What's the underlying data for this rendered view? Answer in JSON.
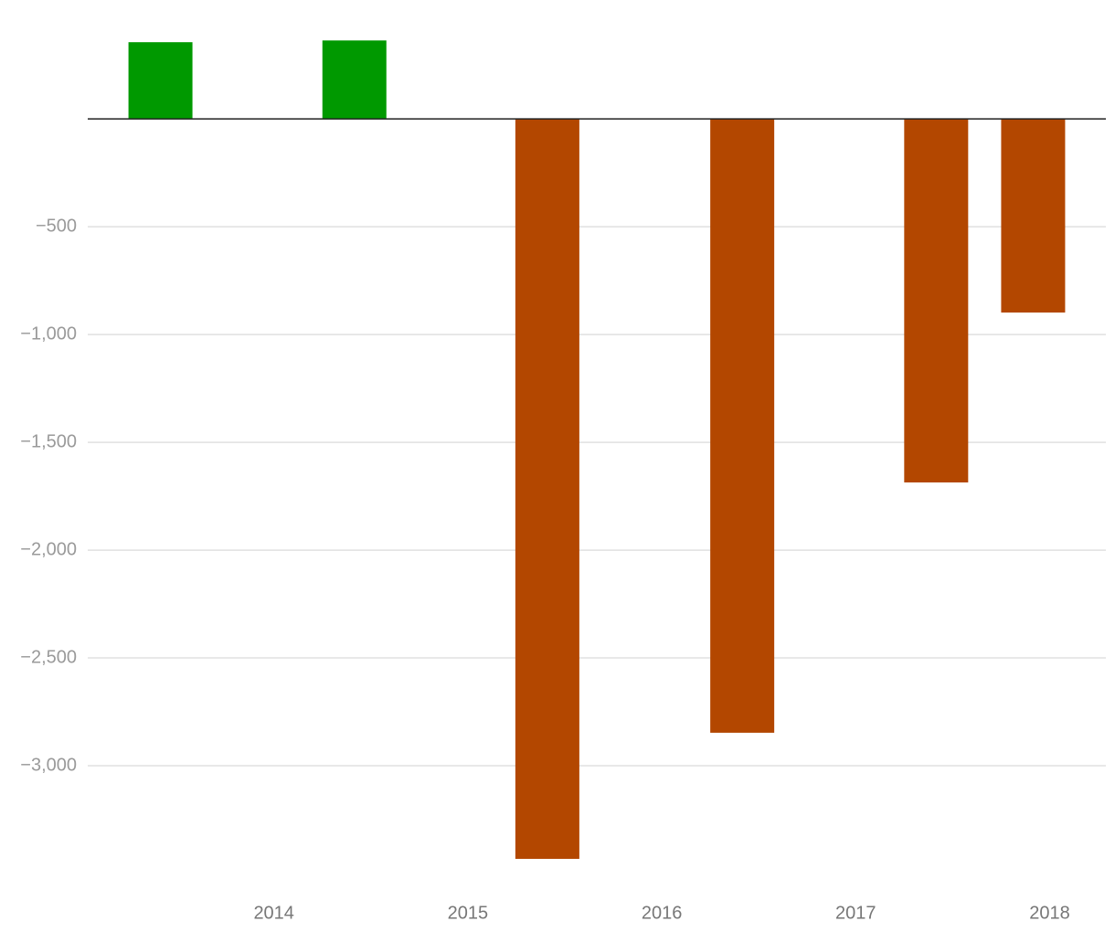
{
  "chart_data": {
    "type": "bar",
    "x": [
      2013.415,
      2014.415,
      2015.41,
      2016.415,
      2017.415,
      2017.915
    ],
    "values": [
      356,
      364,
      -3432,
      -2847,
      -1686,
      -898
    ],
    "positive_color": "#009900",
    "negative_color": "#b34700",
    "xlim": [
      2013.04,
      2018.29
    ],
    "xticks": [
      2014,
      2015,
      2016,
      2017,
      2018
    ],
    "ylim": [
      -3500,
      450
    ],
    "yticks": [
      {
        "value": -500,
        "label": "−500"
      },
      {
        "value": -1000,
        "label": "−1,000"
      },
      {
        "value": -1500,
        "label": "−1,500"
      },
      {
        "value": -2000,
        "label": "−2,000"
      },
      {
        "value": -2500,
        "label": "−2,500"
      },
      {
        "value": -3000,
        "label": "−3,000"
      }
    ],
    "grid": true
  }
}
